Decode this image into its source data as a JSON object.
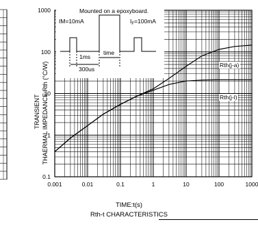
{
  "chart_data": {
    "type": "line",
    "title": "Rth-t CHARACTERISTICS",
    "xlabel": "TIME:t(s)",
    "ylabel": "TRANSIENT THAERMAL IMPEDANCE:Rth (°C/W)",
    "x_scale": "log",
    "y_scale": "log",
    "xlim": [
      0.001,
      1000
    ],
    "ylim": [
      0.1,
      1000
    ],
    "x_ticks": [
      "0.001",
      "0.01",
      "0.1",
      "1",
      "10",
      "100",
      "1000"
    ],
    "y_ticks": [
      "0.1",
      "1",
      "10",
      "100",
      "1000"
    ],
    "grid": true,
    "series": [
      {
        "name": "Rth(j-a)",
        "x": [
          0.001,
          0.003,
          0.01,
          0.03,
          0.1,
          0.3,
          1,
          3,
          10,
          30,
          100,
          300,
          1000
        ],
        "y": [
          0.4,
          0.85,
          1.7,
          3.2,
          5.5,
          8.5,
          13,
          23,
          45,
          80,
          115,
          135,
          145
        ]
      },
      {
        "name": "Rth(j-l)",
        "x": [
          0.001,
          0.003,
          0.01,
          0.03,
          0.1,
          0.3,
          1,
          3,
          10,
          30,
          100,
          300,
          1000
        ],
        "y": [
          0.4,
          0.85,
          1.7,
          3.2,
          5.5,
          8.5,
          12,
          16.5,
          20,
          21,
          21.5,
          21.5,
          21.5
        ]
      }
    ],
    "inset": {
      "title": "Mounted on a epoxyboard.",
      "im_label": "IM=10mA",
      "if_label": "Iₒ=100mA",
      "ms_label": "1ms",
      "time_label": "time",
      "period_label": "300us"
    }
  },
  "colors": {
    "line": "#000000",
    "grid": "#000000",
    "background": "#ffffff"
  }
}
